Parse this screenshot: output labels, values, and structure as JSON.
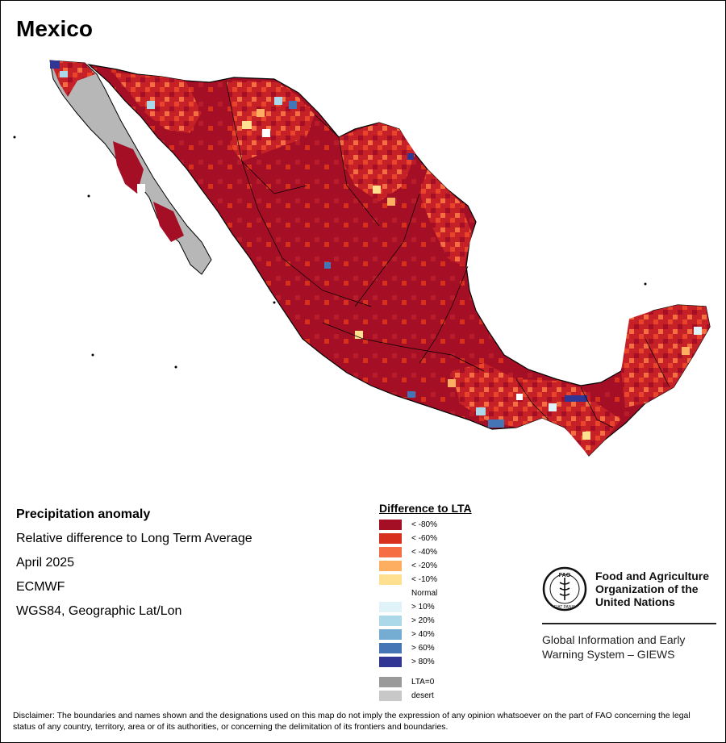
{
  "title": "Mexico",
  "info": {
    "lines": [
      "Precipitation anomaly",
      "Relative difference to Long Term Average",
      "April 2025",
      "ECMWF",
      "WGS84, Geographic Lat/Lon"
    ]
  },
  "legend": {
    "title": "Difference to LTA",
    "items": [
      {
        "label": "< -80%",
        "color": "#a50f26"
      },
      {
        "label": "< -60%",
        "color": "#d7301f"
      },
      {
        "label": "< -40%",
        "color": "#f46d43"
      },
      {
        "label": "< -20%",
        "color": "#fdae61"
      },
      {
        "label": "< -10%",
        "color": "#fee090"
      },
      {
        "label": "Normal",
        "color": "#ffffff"
      },
      {
        "label": "> 10%",
        "color": "#e0f3f8"
      },
      {
        "label": "> 20%",
        "color": "#abd9e9"
      },
      {
        "label": "> 40%",
        "color": "#74add1"
      },
      {
        "label": "> 60%",
        "color": "#4575b4"
      },
      {
        "label": "> 80%",
        "color": "#313695"
      }
    ],
    "extra": [
      {
        "label": "LTA=0",
        "color": "#9a9a9a"
      },
      {
        "label": "desert",
        "color": "#c8c8c8"
      }
    ]
  },
  "organization": {
    "emblem_text": "FAO",
    "emblem_motto": "FIAT PANIS",
    "name_lines": [
      "Food and Agriculture",
      "Organization of the",
      "United Nations"
    ],
    "system_lines": [
      "Global Information and Early",
      "Warning System – GIEWS"
    ]
  },
  "disclaimer": "Disclaimer: The boundaries and names shown and the designations used on this map do not imply the expression of any opinion whatsoever on the part of FAO concerning the legal status of any country, territory, area or of its authorities, or concerning the delimitation of its frontiers and boundaries."
}
